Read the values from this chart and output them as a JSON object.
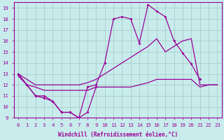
{
  "xlabel": "Windchill (Refroidissement éolien,°C)",
  "background_color": "#c8ecec",
  "line_color": "#990099",
  "grid_color": "#aadddd",
  "x_values": [
    0,
    1,
    2,
    3,
    4,
    5,
    6,
    7,
    8,
    9,
    10,
    11,
    12,
    13,
    14,
    15,
    16,
    17,
    18,
    19,
    20,
    21,
    22,
    23
  ],
  "curve_top": [
    13,
    12,
    11,
    11,
    10.5,
    9.5,
    9.5,
    9,
    11.8,
    12,
    14,
    18,
    18.2,
    18,
    15.8,
    19.3,
    18.7,
    18.2,
    16,
    14.9,
    13.9,
    12.5,
    null,
    null
  ],
  "curve_bot": [
    13,
    12,
    11,
    10.8,
    10.5,
    9.5,
    9.5,
    9,
    9.5,
    11.8,
    null,
    null,
    null,
    null,
    null,
    null,
    null,
    null,
    null,
    null,
    null,
    null,
    null,
    null
  ],
  "diag_upper": [
    13,
    12.5,
    12,
    12,
    12,
    12,
    12,
    12,
    12.2,
    12.5,
    13,
    13.5,
    14,
    14.5,
    15,
    15.5,
    16.2,
    15,
    15.5,
    16,
    16.2,
    12,
    12,
    12
  ],
  "diag_lower": [
    12.8,
    12,
    11.8,
    11.5,
    11.5,
    11.5,
    11.5,
    11.5,
    11.5,
    11.8,
    11.8,
    11.8,
    11.8,
    11.8,
    12,
    12.2,
    12.5,
    12.5,
    12.5,
    12.5,
    12.5,
    11.8,
    12,
    12
  ],
  "ylim": [
    9,
    19.5
  ],
  "xlim": [
    -0.5,
    23.5
  ],
  "yticks": [
    9,
    10,
    11,
    12,
    13,
    14,
    15,
    16,
    17,
    18,
    19
  ],
  "xticks": [
    0,
    1,
    2,
    3,
    4,
    5,
    6,
    7,
    8,
    9,
    10,
    11,
    12,
    13,
    14,
    15,
    16,
    17,
    18,
    19,
    20,
    21,
    22,
    23
  ]
}
